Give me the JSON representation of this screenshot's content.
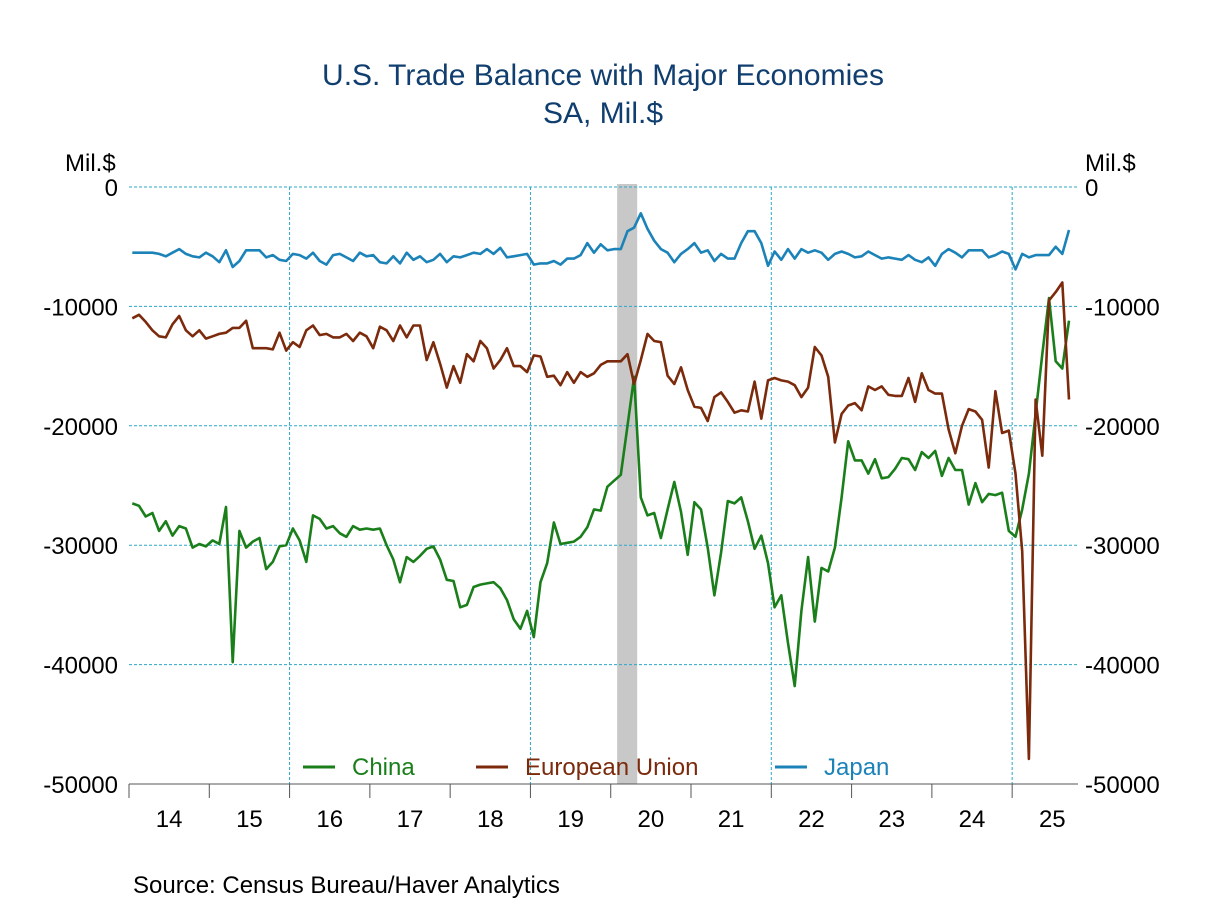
{
  "chart_data": {
    "type": "line",
    "title": "U.S. Trade Balance with Major Economies",
    "subtitle": "SA, Mil.$",
    "ylabel_left": "Mil.$",
    "ylabel_right": "Mil.$",
    "ylim": [
      -50000,
      0
    ],
    "yticks": [
      0,
      -10000,
      -20000,
      -30000,
      -40000,
      -50000
    ],
    "ytick_labels": [
      "0",
      "-10000",
      "-20000",
      "-30000",
      "-40000",
      "-50000"
    ],
    "xlim": [
      2014,
      2025.82
    ],
    "xtick_labels": [
      "14",
      "15",
      "16",
      "17",
      "18",
      "19",
      "20",
      "21",
      "22",
      "23",
      "24",
      "25"
    ],
    "x_start": "2014-01",
    "frequency": "monthly",
    "grid": true,
    "legend_placement": "bottom",
    "recession_shading": [
      [
        2020.08,
        2020.33
      ]
    ],
    "source": "Source:  Census Bureau/Haver Analytics",
    "series": [
      {
        "name": "China",
        "color": "#1a7f1a",
        "values": [
          -26500,
          -26700,
          -27600,
          -27300,
          -28800,
          -28000,
          -29200,
          -28400,
          -28600,
          -30200,
          -29900,
          -30100,
          -29600,
          -29900,
          -26800,
          -39800,
          -28800,
          -30200,
          -29700,
          -29400,
          -32000,
          -31400,
          -30100,
          -30000,
          -28600,
          -29600,
          -31400,
          -27500,
          -27800,
          -28600,
          -28400,
          -29000,
          -29300,
          -28400,
          -28700,
          -28600,
          -28700,
          -28600,
          -30000,
          -31200,
          -33100,
          -31000,
          -31400,
          -30900,
          -30300,
          -30100,
          -31200,
          -32900,
          -33000,
          -35200,
          -35000,
          -33500,
          -33300,
          -33200,
          -33100,
          -33600,
          -34600,
          -36200,
          -37000,
          -35500,
          -37700,
          -33100,
          -31500,
          -28100,
          -29900,
          -29800,
          -29700,
          -29300,
          -28500,
          -27000,
          -27100,
          -25100,
          -24600,
          -24100,
          -20000,
          -15900,
          -26000,
          -27500,
          -27300,
          -29400,
          -27000,
          -24700,
          -27200,
          -30800,
          -26400,
          -27000,
          -30200,
          -34200,
          -30600,
          -26300,
          -26500,
          -26000,
          -28000,
          -30300,
          -29200,
          -31500,
          -35200,
          -34200,
          -38200,
          -41800,
          -35500,
          -31000,
          -36400,
          -31900,
          -32200,
          -30200,
          -26000,
          -21300,
          -22900,
          -22900,
          -24000,
          -22800,
          -24400,
          -24300,
          -23600,
          -22700,
          -22800,
          -23700,
          -22200,
          -22700,
          -22100,
          -24200,
          -22700,
          -23700,
          -23700,
          -26600,
          -24800,
          -26400,
          -25700,
          -25800,
          -25600,
          -28800,
          -29300,
          -27000,
          -24000,
          -19000,
          -14000,
          -9300,
          -14600,
          -15200,
          -11200
        ]
      },
      {
        "name": "European Union",
        "color": "#7b2a0c",
        "values": [
          -11000,
          -10700,
          -11300,
          -12000,
          -12500,
          -12600,
          -11500,
          -10800,
          -12000,
          -12500,
          -12000,
          -12700,
          -12500,
          -12300,
          -12200,
          -11800,
          -11800,
          -11200,
          -13500,
          -13500,
          -13500,
          -13600,
          -12200,
          -13700,
          -13000,
          -13400,
          -12000,
          -11600,
          -12400,
          -12300,
          -12600,
          -12600,
          -12300,
          -12900,
          -12200,
          -12500,
          -13500,
          -11700,
          -12000,
          -12900,
          -11600,
          -12600,
          -11600,
          -11600,
          -14500,
          -13000,
          -14800,
          -16800,
          -15000,
          -16400,
          -14000,
          -14600,
          -12900,
          -13500,
          -15200,
          -14500,
          -13500,
          -15000,
          -15000,
          -15500,
          -14100,
          -14200,
          -15900,
          -15800,
          -16600,
          -15500,
          -16400,
          -15500,
          -15900,
          -15600,
          -14900,
          -14600,
          -14600,
          -14600,
          -14000,
          -16500,
          -14500,
          -12300,
          -12900,
          -13000,
          -15800,
          -16500,
          -15100,
          -17000,
          -18400,
          -18500,
          -19600,
          -17600,
          -17200,
          -18000,
          -18900,
          -18700,
          -18800,
          -16300,
          -19400,
          -16200,
          -16000,
          -16200,
          -16300,
          -16600,
          -17600,
          -16800,
          -13400,
          -14100,
          -15900,
          -21400,
          -19000,
          -18300,
          -18100,
          -18700,
          -16700,
          -17000,
          -16700,
          -17400,
          -17500,
          -17500,
          -16000,
          -18000,
          -15600,
          -17000,
          -17300,
          -17300,
          -20300,
          -22300,
          -20000,
          -18600,
          -18800,
          -19500,
          -23500,
          -17100,
          -20600,
          -20400,
          -24000,
          -30500,
          -47900,
          -17800,
          -22500,
          -9500,
          -8800,
          -8000,
          -17800
        ]
      },
      {
        "name": "Japan",
        "color": "#1c83b9",
        "values": [
          -5500,
          -5500,
          -5500,
          -5500,
          -5600,
          -5800,
          -5500,
          -5200,
          -5600,
          -5800,
          -5900,
          -5500,
          -5800,
          -6300,
          -5300,
          -6700,
          -6200,
          -5300,
          -5300,
          -5300,
          -5900,
          -5700,
          -6100,
          -6200,
          -5600,
          -5700,
          -6000,
          -5500,
          -6200,
          -6500,
          -5700,
          -5600,
          -5900,
          -6200,
          -5500,
          -5800,
          -5700,
          -6300,
          -6400,
          -5800,
          -6400,
          -5500,
          -6100,
          -5800,
          -6300,
          -6100,
          -5600,
          -6300,
          -5800,
          -5900,
          -5700,
          -5500,
          -5600,
          -5200,
          -5600,
          -5100,
          -5900,
          -5800,
          -5700,
          -5600,
          -6500,
          -6400,
          -6400,
          -6200,
          -6500,
          -6000,
          -6000,
          -5700,
          -4700,
          -5500,
          -4800,
          -5300,
          -5200,
          -5200,
          -3700,
          -3400,
          -2200,
          -3500,
          -4500,
          -5200,
          -5500,
          -6300,
          -5600,
          -5200,
          -4700,
          -5500,
          -5300,
          -6200,
          -5600,
          -6000,
          -6000,
          -4700,
          -3700,
          -3700,
          -4700,
          -6600,
          -5400,
          -6100,
          -5200,
          -6000,
          -5200,
          -5500,
          -5300,
          -5500,
          -6100,
          -5600,
          -5400,
          -5600,
          -5900,
          -5800,
          -5400,
          -5700,
          -6000,
          -5900,
          -6000,
          -6100,
          -5700,
          -6100,
          -6300,
          -5900,
          -6600,
          -5600,
          -5200,
          -5500,
          -5900,
          -5300,
          -5300,
          -5300,
          -5900,
          -5700,
          -5400,
          -5600,
          -6900,
          -5600,
          -5900,
          -5700,
          -5700,
          -5700,
          -5000,
          -5600,
          -3600
        ]
      }
    ]
  }
}
